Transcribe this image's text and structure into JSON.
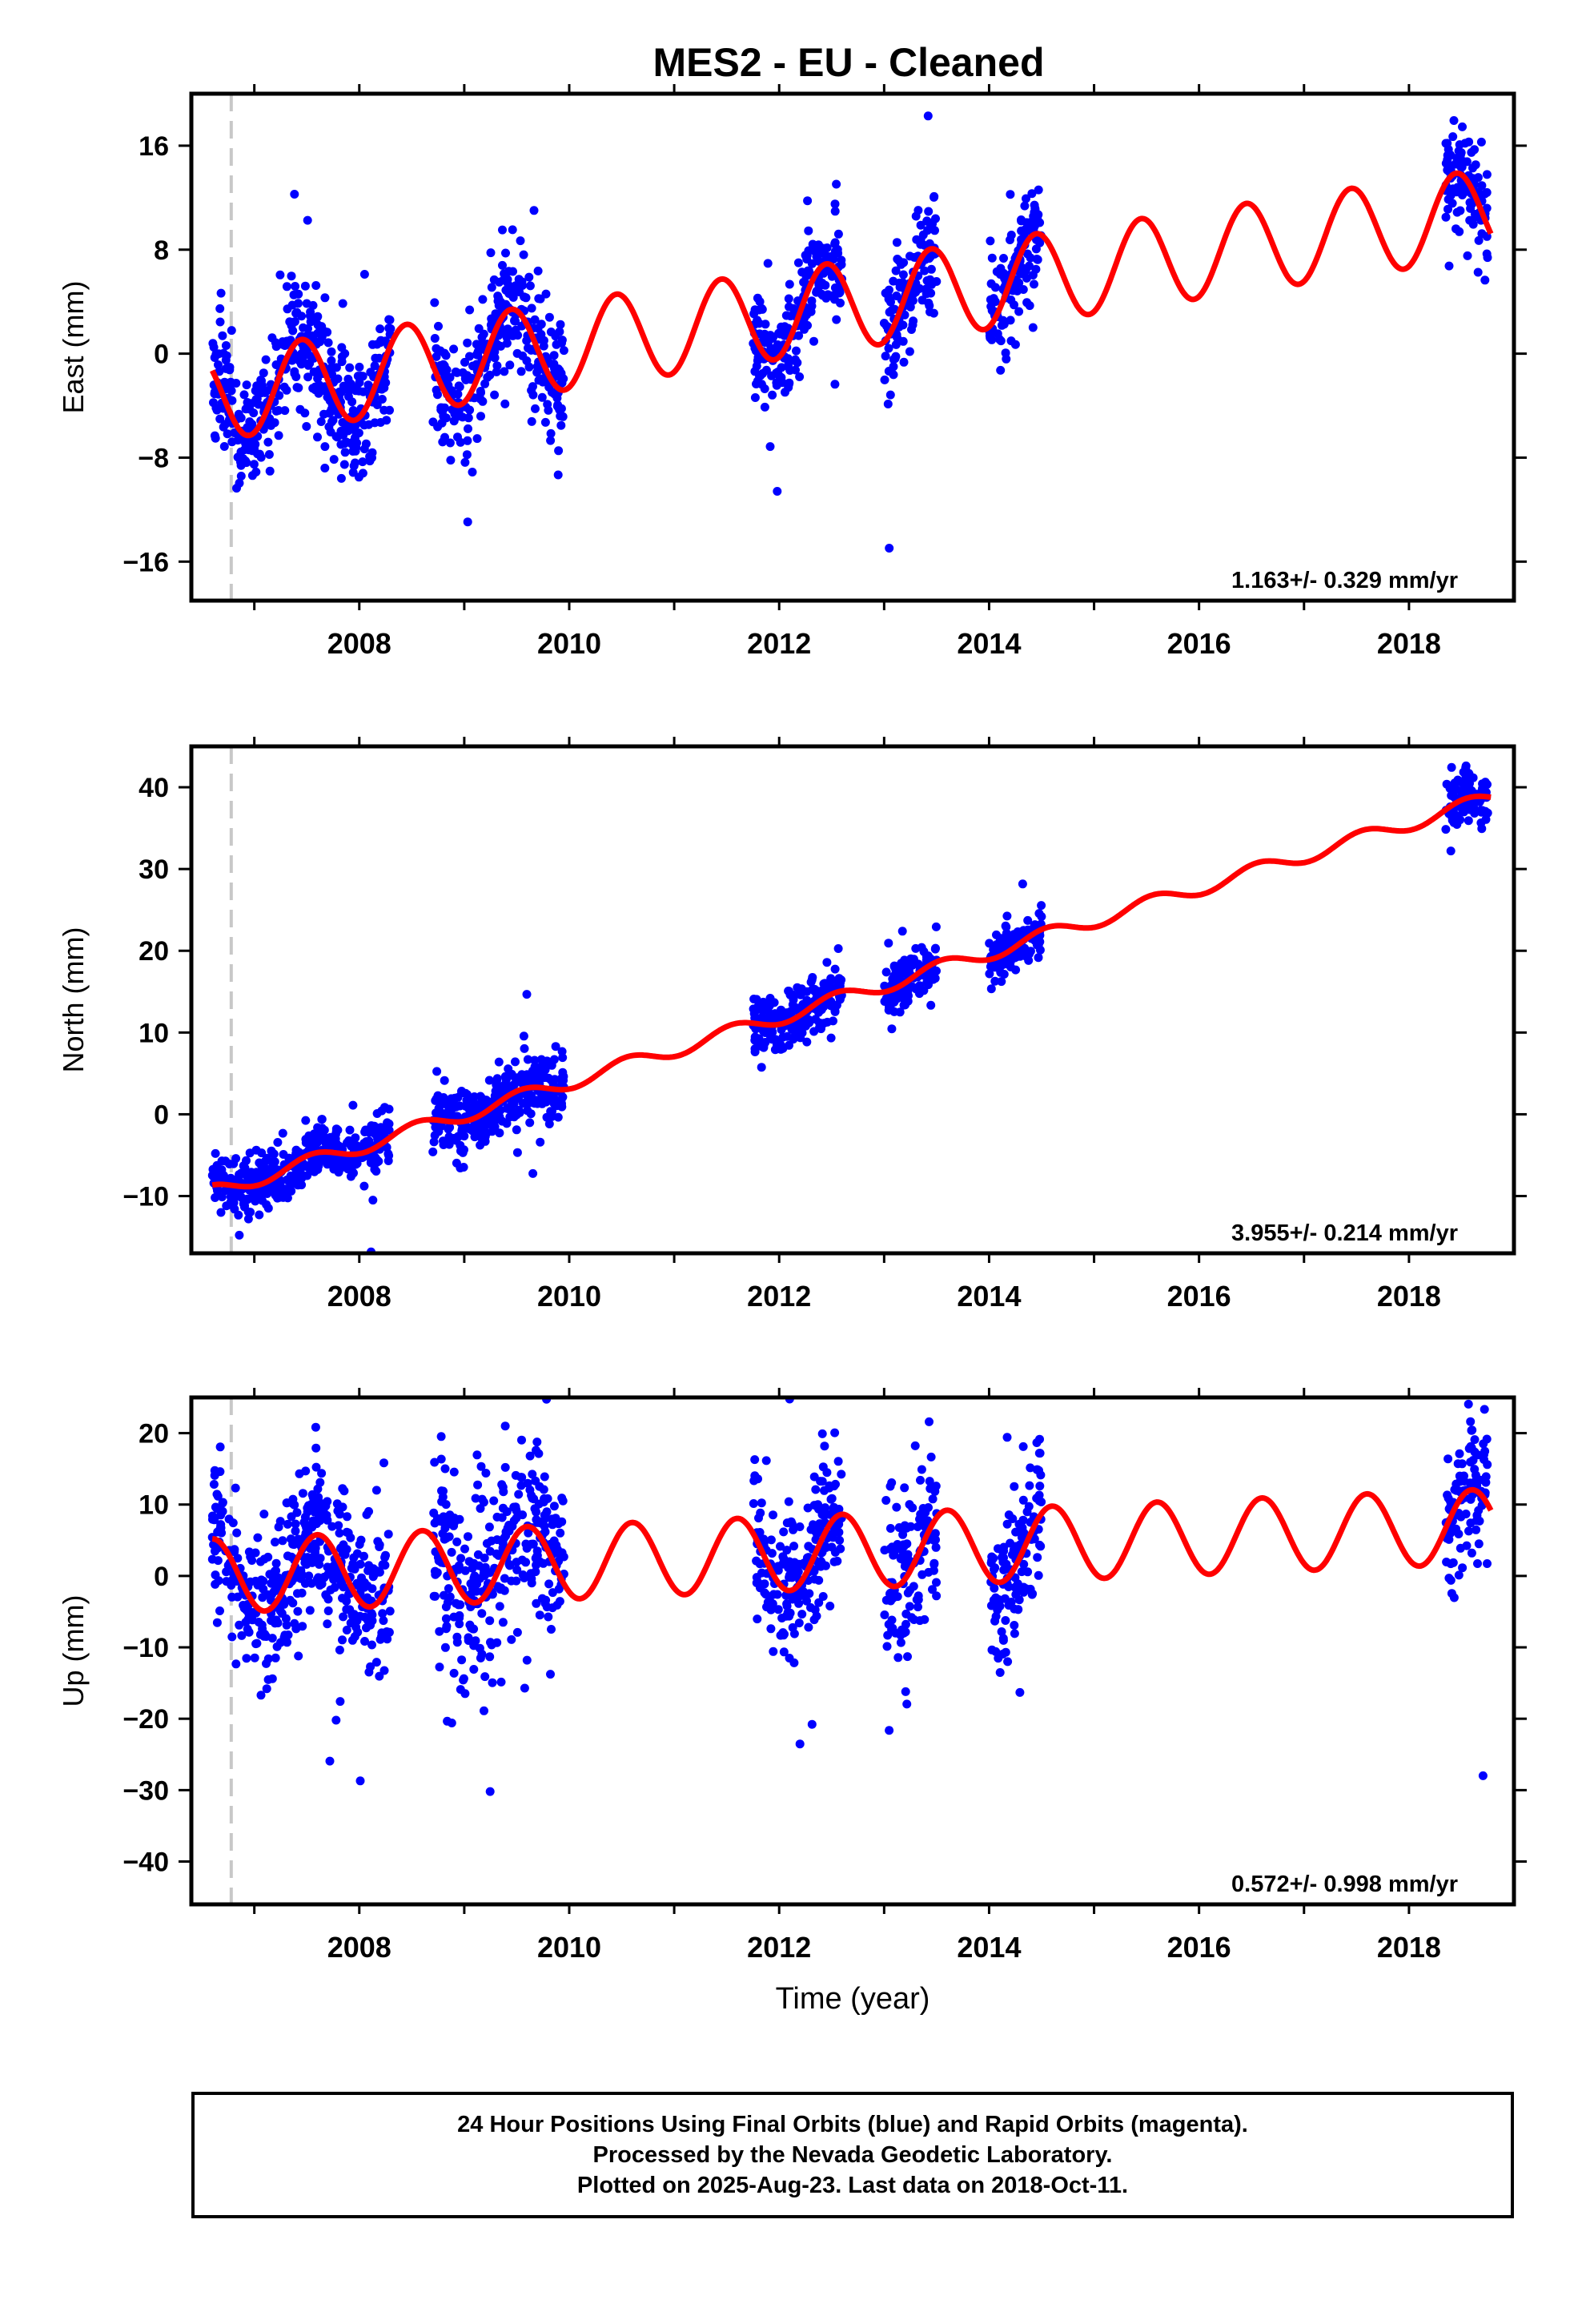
{
  "title": "MES2  - EU - Cleaned",
  "colors": {
    "data": "#0000ff",
    "model": "#ff0000",
    "offset_marker": "#c8c8c8"
  },
  "chart_data": [
    {
      "type": "scatter",
      "component": "East",
      "ylabel": "East (mm)",
      "xlabel": "",
      "xlim": [
        2006.4,
        2019.0
      ],
      "ylim": [
        -19,
        20
      ],
      "yticks": [
        -16,
        -8,
        0,
        8,
        16
      ],
      "xticks": [
        2008,
        2010,
        2012,
        2014,
        2016,
        2018
      ],
      "rate_label": "1.163+/- 0.329 mm/yr",
      "offset_epoch": 2006.78,
      "model": {
        "intercept": -3.3,
        "t0": 2006.6,
        "rate": 1.163,
        "annual_amp": 3.4,
        "annual_peak": 2007.45
      },
      "data_segments": [
        {
          "from": 2006.6,
          "to": 2008.3,
          "spread": 2.2
        },
        {
          "from": 2008.7,
          "to": 2009.95,
          "spread": 2.4
        },
        {
          "from": 2011.75,
          "to": 2012.6,
          "spread": 2.0
        },
        {
          "from": 2013.0,
          "to": 2013.5,
          "spread": 2.4
        },
        {
          "from": 2014.0,
          "to": 2014.5,
          "spread": 2.0
        },
        {
          "from": 2018.35,
          "to": 2018.75,
          "spread": 2.0
        }
      ]
    },
    {
      "type": "scatter",
      "component": "North",
      "ylabel": "North (mm)",
      "xlabel": "",
      "xlim": [
        2006.4,
        2019.0
      ],
      "ylim": [
        -17,
        45
      ],
      "yticks": [
        -10,
        0,
        10,
        20,
        30,
        40
      ],
      "xticks": [
        2008,
        2010,
        2012,
        2014,
        2016,
        2018
      ],
      "rate_label": "3.955+/- 0.214 mm/yr",
      "offset_epoch": 2006.78,
      "model": {
        "intercept": -9.5,
        "t0": 2006.6,
        "rate": 3.955,
        "annual_amp": 0.9,
        "annual_peak": 2007.55
      },
      "data_segments": [
        {
          "from": 2006.6,
          "to": 2008.3,
          "spread": 1.6
        },
        {
          "from": 2008.7,
          "to": 2009.95,
          "spread": 2.0
        },
        {
          "from": 2011.75,
          "to": 2012.6,
          "spread": 1.6
        },
        {
          "from": 2013.0,
          "to": 2013.5,
          "spread": 1.6
        },
        {
          "from": 2014.0,
          "to": 2014.5,
          "spread": 1.4
        },
        {
          "from": 2018.35,
          "to": 2018.75,
          "spread": 1.8
        }
      ]
    },
    {
      "type": "scatter",
      "component": "Up",
      "ylabel": "Up (mm)",
      "xlabel": "Time (year)",
      "xlim": [
        2006.4,
        2019.0
      ],
      "ylim": [
        -46,
        25
      ],
      "yticks": [
        -40,
        -30,
        -20,
        -10,
        0,
        10,
        20
      ],
      "xticks": [
        2008,
        2010,
        2012,
        2014,
        2016,
        2018
      ],
      "rate_label": "0.572+/- 0.998 mm/yr",
      "offset_epoch": 2006.78,
      "model": {
        "intercept": 0.0,
        "t0": 2006.6,
        "rate": 0.572,
        "annual_amp": 5.2,
        "annual_peak": 2007.6
      },
      "data_segments": [
        {
          "from": 2006.6,
          "to": 2008.3,
          "spread": 5.0
        },
        {
          "from": 2008.7,
          "to": 2009.95,
          "spread": 6.5
        },
        {
          "from": 2011.75,
          "to": 2012.6,
          "spread": 5.0
        },
        {
          "from": 2013.0,
          "to": 2013.5,
          "spread": 6.0
        },
        {
          "from": 2014.0,
          "to": 2014.5,
          "spread": 5.0
        },
        {
          "from": 2018.35,
          "to": 2018.75,
          "spread": 5.0
        }
      ]
    }
  ],
  "caption": {
    "line1": "24 Hour Positions Using Final Orbits (blue) and Rapid Orbits (magenta).",
    "line2": "Processed by the Nevada Geodetic Laboratory.",
    "line3": "Plotted on 2025-Aug-23. Last data on 2018-Oct-11."
  }
}
